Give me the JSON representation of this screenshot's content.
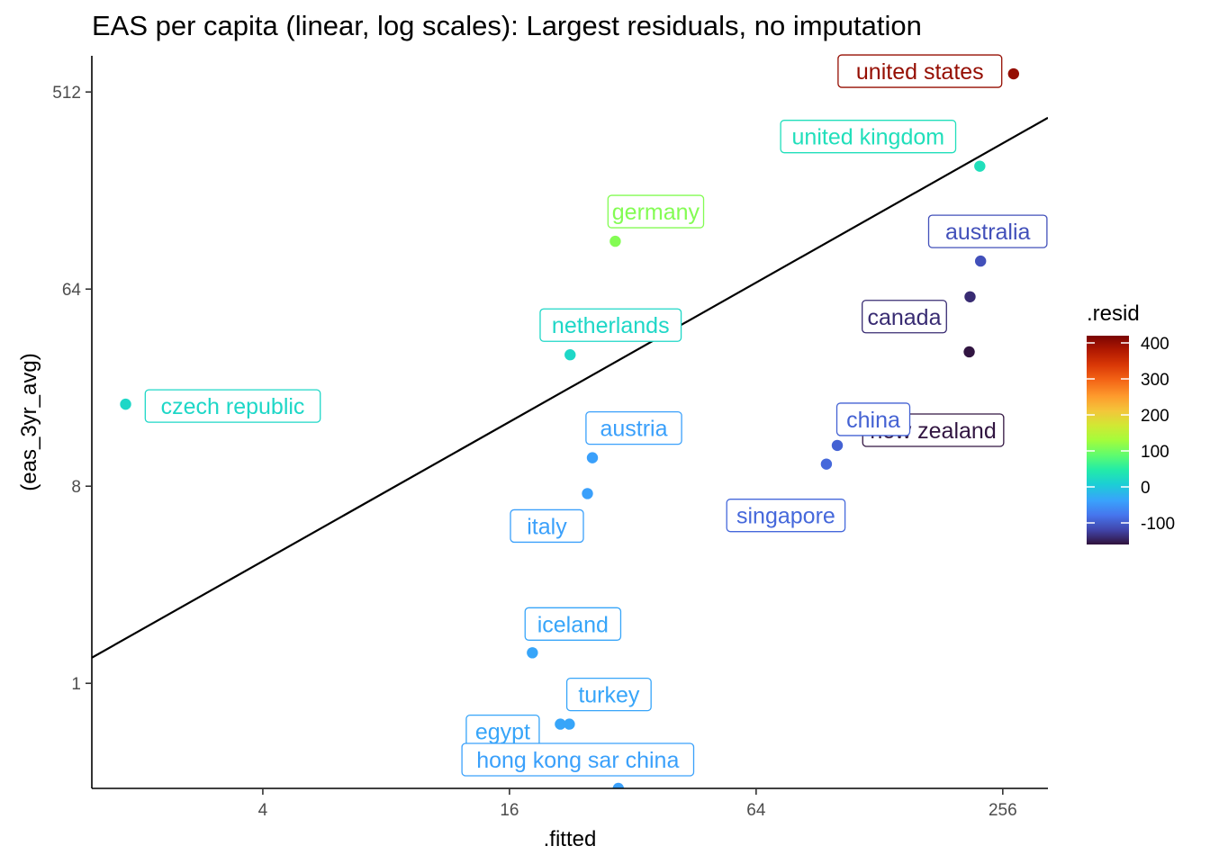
{
  "chart_data": {
    "type": "scatter",
    "title": "EAS per capita (linear, log scales): Largest residuals, no imputation",
    "xlabel": ".fitted",
    "ylabel": "(eas_3yr_avg)",
    "x_scale": "log2",
    "y_scale": "log2",
    "xlim": [
      1.53,
      330
    ],
    "ylim": [
      0.33,
      750
    ],
    "x_ticks": [
      4,
      16,
      64,
      256
    ],
    "x_tick_labels": [
      "4",
      "16",
      "64",
      "256"
    ],
    "y_ticks": [
      1,
      8,
      64,
      512
    ],
    "y_tick_labels": [
      "1",
      "8",
      "64",
      "512"
    ],
    "fit_line": {
      "x": [
        1.53,
        330
      ],
      "y": [
        1.31,
        390
      ]
    },
    "points": [
      {
        "label": "united states",
        "x": 272,
        "y": 620,
        "resid": 400
      },
      {
        "label": "united kingdom",
        "x": 225,
        "y": 234,
        "resid": 30
      },
      {
        "label": "germany",
        "x": 29,
        "y": 106,
        "resid": 110
      },
      {
        "label": "australia",
        "x": 226,
        "y": 86,
        "resid": -110
      },
      {
        "label": "canada",
        "x": 213,
        "y": 59,
        "resid": -140
      },
      {
        "label": "new zealand",
        "x": 212,
        "y": 33,
        "resid": -158
      },
      {
        "label": "netherlands",
        "x": 22.5,
        "y": 32,
        "resid": 20
      },
      {
        "label": "czech republic",
        "x": 1.85,
        "y": 19,
        "resid": 20
      },
      {
        "label": "china",
        "x": 101,
        "y": 12.3,
        "resid": -95
      },
      {
        "label": "singapore",
        "x": 95,
        "y": 10.1,
        "resid": -90
      },
      {
        "label": "austria",
        "x": 25.5,
        "y": 10.8,
        "resid": -40
      },
      {
        "label": "italy",
        "x": 24.8,
        "y": 7.4,
        "resid": -40
      },
      {
        "label": "iceland",
        "x": 18.2,
        "y": 1.38,
        "resid": -35
      },
      {
        "label": "turkey",
        "x": 22.4,
        "y": 0.65,
        "resid": -35
      },
      {
        "label": "egypt",
        "x": 21.3,
        "y": 0.65,
        "resid": -35
      },
      {
        "label": "hong kong sar china",
        "x": 29.5,
        "y": 0.33,
        "resid": -40
      }
    ],
    "legend": {
      "title": ".resid",
      "range": [
        -160,
        420
      ],
      "ticks": [
        400,
        300,
        200,
        100,
        0,
        -100
      ],
      "tick_labels": [
        "400",
        "300",
        "200",
        "100",
        "0",
        "-100"
      ],
      "palette": "turbo"
    },
    "grid": false
  }
}
